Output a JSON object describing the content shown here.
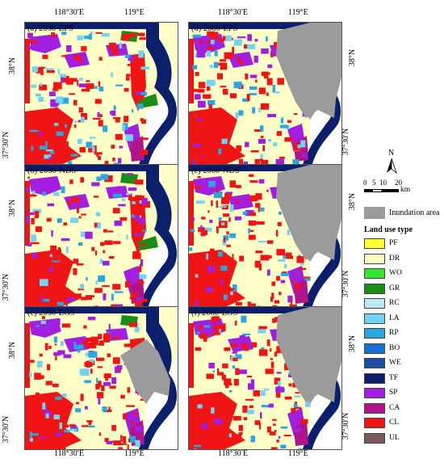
{
  "axes": {
    "top_lon": [
      "118°30′E",
      "119°E"
    ],
    "bottom_lon": [
      "118°30′E",
      "119°E"
    ],
    "left_lat": [
      "38°N",
      "37°30′N"
    ],
    "right_lat": [
      "38°N",
      "37°30′N"
    ]
  },
  "panels": [
    {
      "id": "a",
      "title": "(a) 2030-EPS",
      "inundation": 0
    },
    {
      "id": "d",
      "title": "(d) 2060-EPS",
      "inundation": 2
    },
    {
      "id": "b",
      "title": "(b) 2030-NDS",
      "inundation": 0
    },
    {
      "id": "e",
      "title": "(e) 2060-NDS",
      "inundation": 2
    },
    {
      "id": "c",
      "title": "(c) 2030-EGS",
      "inundation": 1
    },
    {
      "id": "f",
      "title": "(f) 2060-EGS",
      "inundation": 2
    }
  ],
  "north_arrow": {
    "label": "N"
  },
  "scale_bar": {
    "ticks": [
      "0",
      "5",
      "10",
      "20"
    ],
    "unit": "km"
  },
  "legend": {
    "inundation": {
      "label": "Inundation area",
      "color": "#9b9b9b"
    },
    "title": "Land use type",
    "items": [
      {
        "code": "PF",
        "color": "#ffff33"
      },
      {
        "code": "DR",
        "color": "#ffffc8"
      },
      {
        "code": "WO",
        "color": "#33e633"
      },
      {
        "code": "GR",
        "color": "#1a8c1a"
      },
      {
        "code": "RC",
        "color": "#bfe8f2"
      },
      {
        "code": "LA",
        "color": "#73d3f2"
      },
      {
        "code": "RP",
        "color": "#2aa6e0"
      },
      {
        "code": "BO",
        "color": "#1b6fd1"
      },
      {
        "code": "WE",
        "color": "#1b4fa3"
      },
      {
        "code": "TF",
        "color": "#0c1f6b"
      },
      {
        "code": "SP",
        "color": "#a31fe0"
      },
      {
        "code": "CA",
        "color": "#b0148c"
      },
      {
        "code": "CL",
        "color": "#f01414"
      },
      {
        "code": "UL",
        "color": "#7a5a5a"
      }
    ]
  }
}
